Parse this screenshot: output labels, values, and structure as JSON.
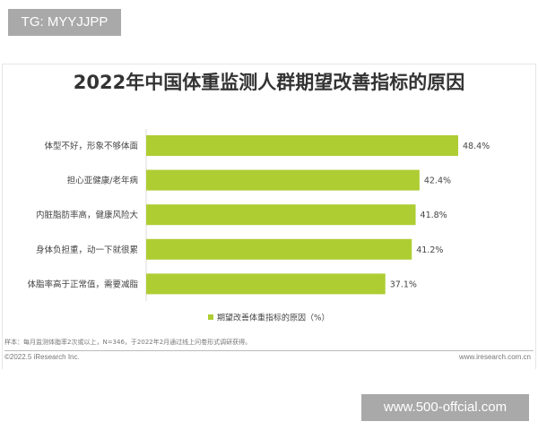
{
  "watermark_top": "TG: MYYJJPP",
  "watermark_bottom": "www.500-offcial.com",
  "chart_data": {
    "type": "bar",
    "orientation": "horizontal",
    "title": "2022年中国体重监测人群期望改善指标的原因",
    "categories": [
      "体型不好，形象不够体面",
      "担心亚健康/老年病",
      "内脏脂肪率高，健康风险大",
      "身体负担重，动一下就很累",
      "体脂率高于正常值，需要减脂"
    ],
    "series": [
      {
        "name": "期望改善体重指标的原因（%）",
        "values": [
          48.4,
          42.4,
          41.8,
          41.2,
          37.1
        ],
        "color": "#aecd33"
      }
    ],
    "data_labels": [
      "48.4%",
      "42.4%",
      "41.8%",
      "41.2%",
      "37.1%"
    ],
    "legend": "bottom",
    "grid": false
  },
  "footer": {
    "note": "样本：每月监测体脂率2次或以上，N=346，于2022年2月通过线上问卷形式调研获得。",
    "copyright": "©2022.5 iResearch Inc.",
    "site": "www.iresearch.com.cn"
  }
}
